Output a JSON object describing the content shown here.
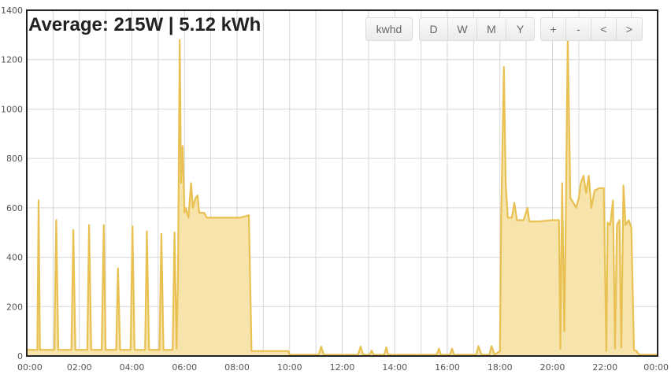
{
  "header": {
    "title": "Average: 215W | 5.12 kWh"
  },
  "controls": {
    "kwhd": "kwhd",
    "day": "D",
    "week": "W",
    "month": "M",
    "year": "Y",
    "zoom_in": "+",
    "zoom_out": "-",
    "pan_left": "<",
    "pan_right": ">"
  },
  "colors": {
    "line": "#e8c152",
    "fill": "#f7e3ac",
    "grid": "#d6d6d6",
    "frame": "#222222"
  },
  "chart_data": {
    "type": "area",
    "title": "Average: 215W | 5.12 kWh",
    "xlabel": "",
    "ylabel": "",
    "x_unit": "hours",
    "xlim": [
      0,
      24
    ],
    "ylim": [
      0,
      1400
    ],
    "x_ticks": [
      "00:00",
      "02:00",
      "04:00",
      "06:00",
      "08:00",
      "10:00",
      "12:00",
      "14:00",
      "16:00",
      "18:00",
      "20:00",
      "22:00",
      "00:00"
    ],
    "y_ticks": [
      "0",
      "200",
      "400",
      "600",
      "800",
      "1000",
      "1200",
      "1400"
    ],
    "grid": true,
    "legend": "none",
    "series": [
      {
        "points": [
          [
            0,
            25
          ],
          [
            0.4,
            25
          ],
          [
            0.45,
            630
          ],
          [
            0.5,
            25
          ],
          [
            1.05,
            25
          ],
          [
            1.12,
            550
          ],
          [
            1.2,
            25
          ],
          [
            1.7,
            25
          ],
          [
            1.77,
            510
          ],
          [
            1.85,
            25
          ],
          [
            2.3,
            25
          ],
          [
            2.37,
            530
          ],
          [
            2.45,
            25
          ],
          [
            2.85,
            25
          ],
          [
            2.93,
            530
          ],
          [
            3.0,
            25
          ],
          [
            3.4,
            25
          ],
          [
            3.47,
            355
          ],
          [
            3.55,
            25
          ],
          [
            3.95,
            25
          ],
          [
            4.02,
            525
          ],
          [
            4.1,
            25
          ],
          [
            4.5,
            25
          ],
          [
            4.57,
            505
          ],
          [
            4.65,
            25
          ],
          [
            5.05,
            25
          ],
          [
            5.12,
            495
          ],
          [
            5.2,
            25
          ],
          [
            5.55,
            25
          ],
          [
            5.62,
            500
          ],
          [
            5.7,
            30
          ],
          [
            5.75,
            300
          ],
          [
            5.82,
            1280
          ],
          [
            5.87,
            700
          ],
          [
            5.93,
            850
          ],
          [
            6.0,
            580
          ],
          [
            6.05,
            600
          ],
          [
            6.15,
            560
          ],
          [
            6.25,
            700
          ],
          [
            6.32,
            600
          ],
          [
            6.42,
            640
          ],
          [
            6.5,
            650
          ],
          [
            6.56,
            580
          ],
          [
            6.65,
            580
          ],
          [
            6.75,
            580
          ],
          [
            6.85,
            560
          ],
          [
            7.2,
            560
          ],
          [
            7.6,
            560
          ],
          [
            8.1,
            560
          ],
          [
            8.45,
            570
          ],
          [
            8.55,
            20
          ],
          [
            9.95,
            20
          ],
          [
            10.0,
            5
          ],
          [
            11.1,
            5
          ],
          [
            11.2,
            38
          ],
          [
            11.3,
            5
          ],
          [
            12.6,
            5
          ],
          [
            12.7,
            38
          ],
          [
            12.8,
            5
          ],
          [
            13.05,
            5
          ],
          [
            13.12,
            22
          ],
          [
            13.2,
            5
          ],
          [
            13.6,
            5
          ],
          [
            13.68,
            35
          ],
          [
            13.75,
            5
          ],
          [
            15.6,
            5
          ],
          [
            15.68,
            30
          ],
          [
            15.75,
            5
          ],
          [
            16.1,
            5
          ],
          [
            16.18,
            30
          ],
          [
            16.25,
            5
          ],
          [
            17.1,
            5
          ],
          [
            17.18,
            40
          ],
          [
            17.3,
            5
          ],
          [
            17.6,
            5
          ],
          [
            17.68,
            40
          ],
          [
            17.8,
            5
          ],
          [
            18.0,
            20
          ],
          [
            18.05,
            560
          ],
          [
            18.15,
            1170
          ],
          [
            18.22,
            700
          ],
          [
            18.3,
            560
          ],
          [
            18.45,
            560
          ],
          [
            18.55,
            620
          ],
          [
            18.65,
            550
          ],
          [
            18.9,
            550
          ],
          [
            19.05,
            600
          ],
          [
            19.12,
            545
          ],
          [
            19.5,
            545
          ],
          [
            20.0,
            550
          ],
          [
            20.25,
            550
          ],
          [
            20.3,
            30
          ],
          [
            20.37,
            700
          ],
          [
            20.45,
            100
          ],
          [
            20.5,
            500
          ],
          [
            20.58,
            1290
          ],
          [
            20.68,
            640
          ],
          [
            20.8,
            620
          ],
          [
            20.9,
            600
          ],
          [
            21.0,
            640
          ],
          [
            21.08,
            700
          ],
          [
            21.18,
            730
          ],
          [
            21.28,
            660
          ],
          [
            21.38,
            730
          ],
          [
            21.48,
            600
          ],
          [
            21.6,
            670
          ],
          [
            21.8,
            680
          ],
          [
            21.95,
            680
          ],
          [
            22.05,
            20
          ],
          [
            22.1,
            540
          ],
          [
            22.2,
            530
          ],
          [
            22.3,
            630
          ],
          [
            22.38,
            30
          ],
          [
            22.45,
            530
          ],
          [
            22.55,
            550
          ],
          [
            22.62,
            35
          ],
          [
            22.7,
            690
          ],
          [
            22.78,
            530
          ],
          [
            22.9,
            550
          ],
          [
            23.0,
            520
          ],
          [
            23.1,
            25
          ],
          [
            23.2,
            20
          ],
          [
            23.3,
            5
          ],
          [
            24,
            5
          ]
        ]
      }
    ]
  }
}
